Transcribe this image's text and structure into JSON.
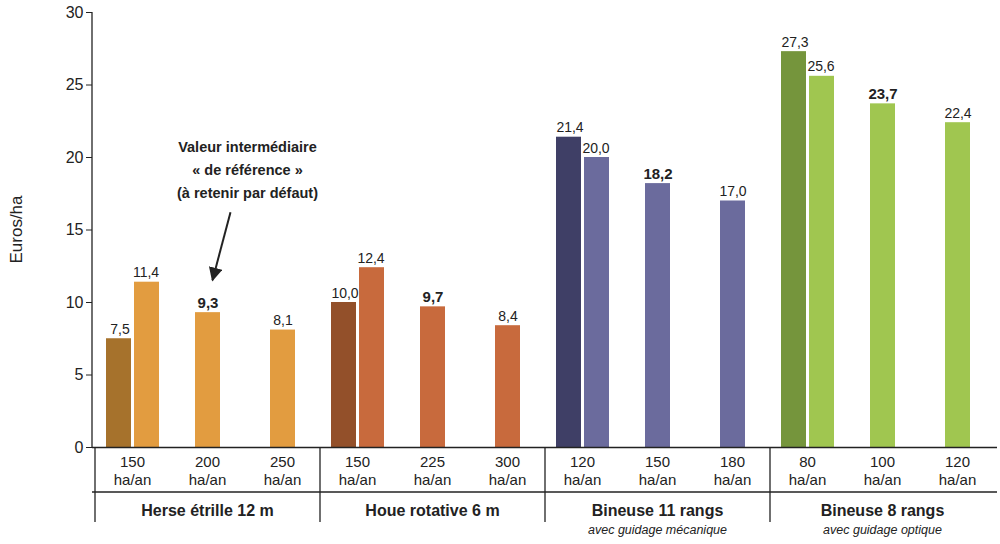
{
  "chart_data": {
    "type": "bar",
    "y_label": "Euros/ha",
    "categories": [
      "150\nha/an",
      "200\nha/an",
      "250\nha/an",
      "150\nha/an",
      "225\nha/an",
      "300\nha/an",
      "120\nha/an",
      "150\nha/an",
      "180\nha/an",
      "80\nha/an",
      "100\nha/an",
      "120\nha/an"
    ],
    "category_groups": [
      "Herse étrille 12 m",
      "Herse étrille 12 m",
      "Herse étrille 12 m",
      "Houe rotative 6 m",
      "Houe rotative 6 m",
      "Houe rotative 6 m",
      "Bineuse 11 rangs",
      "Bineuse 11 rangs",
      "Bineuse 11 rangs",
      "Bineuse 8 rangs",
      "Bineuse 8 rangs",
      "Bineuse 8 rangs"
    ],
    "group_notes": {
      "Bineuse 11 rangs": "avec guidage mécanique",
      "Bineuse 8 rangs": "avec guidage optique"
    },
    "series": [
      {
        "colors": [
          "#a6722c",
          "#a6722c",
          "#a6722c",
          "#93502a",
          "#93502a",
          "#93502a",
          "#3f3f66",
          "#3f3f66",
          "#3f3f66",
          "#75953c",
          "#75953c",
          "#75953c"
        ],
        "values": [
          7.5,
          null,
          null,
          10.0,
          null,
          null,
          21.4,
          null,
          null,
          27.3,
          null,
          null
        ],
        "value_labels": [
          "7,5",
          null,
          null,
          "10,0",
          null,
          null,
          "21,4",
          null,
          null,
          "27,3",
          null,
          null
        ]
      },
      {
        "colors": [
          "#e29c40",
          "#e29c40",
          "#e29c40",
          "#c86a3d",
          "#c86a3d",
          "#c86a3d",
          "#6b6b9d",
          "#6b6b9d",
          "#6b6b9d",
          "#a0c650",
          "#a0c650",
          "#a0c650"
        ],
        "values": [
          11.4,
          9.3,
          8.1,
          12.4,
          9.7,
          8.4,
          20.0,
          18.2,
          17.0,
          25.6,
          23.7,
          22.4
        ],
        "value_labels": [
          "11,4",
          "9,3",
          "8,1",
          "12,4",
          "9,7",
          "8,4",
          "20,0",
          "18,2",
          "17,0",
          "25,6",
          "23,7",
          "22,4"
        ]
      }
    ],
    "ylim": [
      0,
      30
    ],
    "yticks": [
      0,
      5,
      10,
      15,
      20,
      25,
      30
    ],
    "grid": false,
    "data_labels": true,
    "annotation": {
      "text": "Valeur intermédiaire\n« de référence »\n(à retenir par défaut)",
      "target": "200\nha/an"
    }
  }
}
